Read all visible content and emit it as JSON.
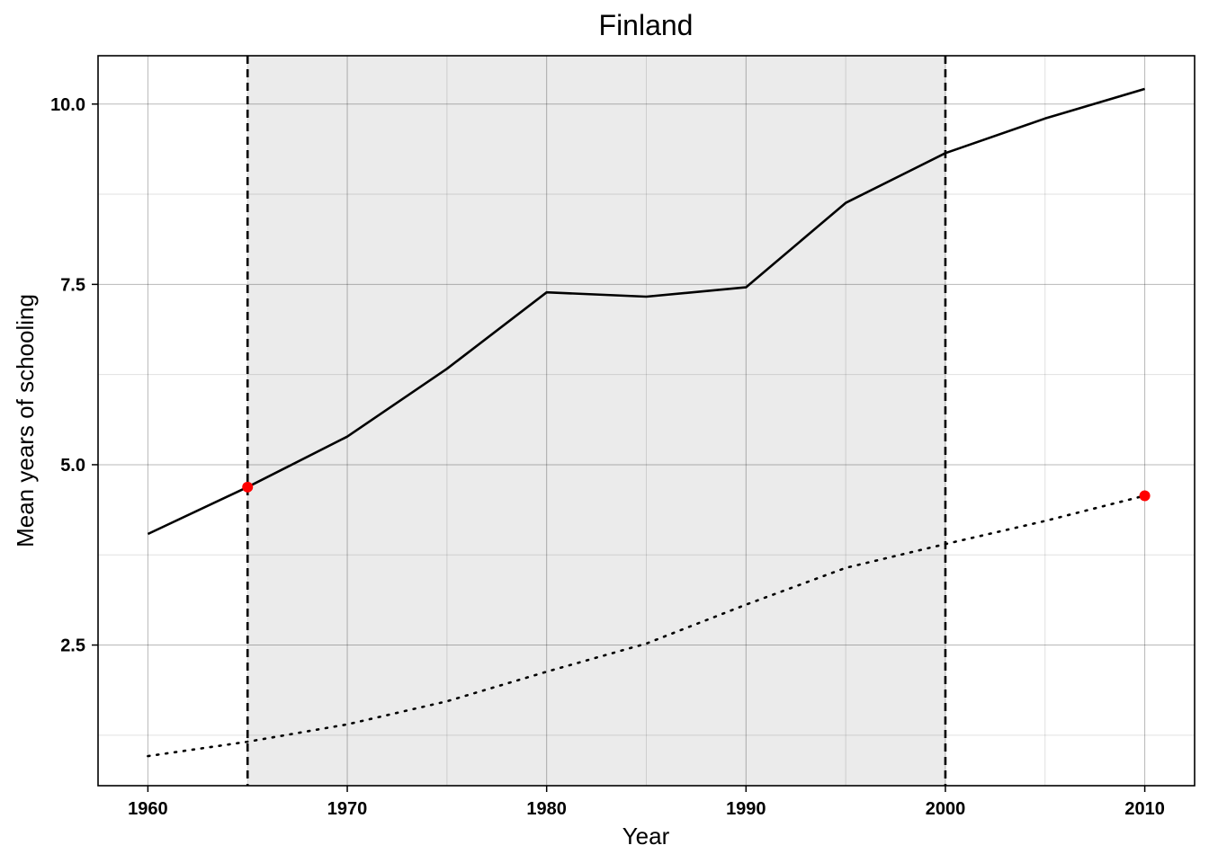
{
  "chart_data": {
    "type": "line",
    "title": "Finland",
    "xlabel": "Year",
    "ylabel": "Mean years of schooling",
    "xlim": [
      1957.5,
      2012.5
    ],
    "ylim": [
      0.55,
      10.67
    ],
    "x_ticks": [
      1960,
      1970,
      1980,
      1990,
      2000,
      2010
    ],
    "x_tick_labels": [
      "1960",
      "1970",
      "1980",
      "1990",
      "2000",
      "2010"
    ],
    "y_ticks": [
      2.5,
      5.0,
      7.5,
      10.0
    ],
    "y_tick_labels": [
      "2.5",
      "5.0",
      "7.5",
      "10.0"
    ],
    "x_minor_ticks": [
      1965,
      1975,
      1985,
      1995,
      2005
    ],
    "y_minor_ticks": [
      1.25,
      3.75,
      6.25,
      8.75
    ],
    "grid": true,
    "shaded_region": {
      "x_start": 1965,
      "x_end": 2000,
      "color": "#ebebeb"
    },
    "vertical_lines": [
      {
        "x": 1965,
        "style": "dashed"
      },
      {
        "x": 2000,
        "style": "dashed"
      }
    ],
    "x": [
      1960,
      1965,
      1970,
      1975,
      1980,
      1985,
      1990,
      1995,
      2000,
      2005,
      2010
    ],
    "series": [
      {
        "style": "solid",
        "color": "#000000",
        "values": [
          4.04,
          4.69,
          5.39,
          6.33,
          7.39,
          7.33,
          7.46,
          8.63,
          9.32,
          9.8,
          10.21
        ]
      },
      {
        "style": "dotted",
        "color": "#000000",
        "values": [
          0.96,
          1.16,
          1.4,
          1.72,
          2.13,
          2.52,
          3.06,
          3.57,
          3.9,
          4.22,
          4.57
        ]
      }
    ],
    "highlight_points": [
      {
        "x": 1965,
        "y": 4.69,
        "color": "#ff0000"
      },
      {
        "x": 2010,
        "y": 4.57,
        "color": "#ff0000"
      }
    ]
  }
}
